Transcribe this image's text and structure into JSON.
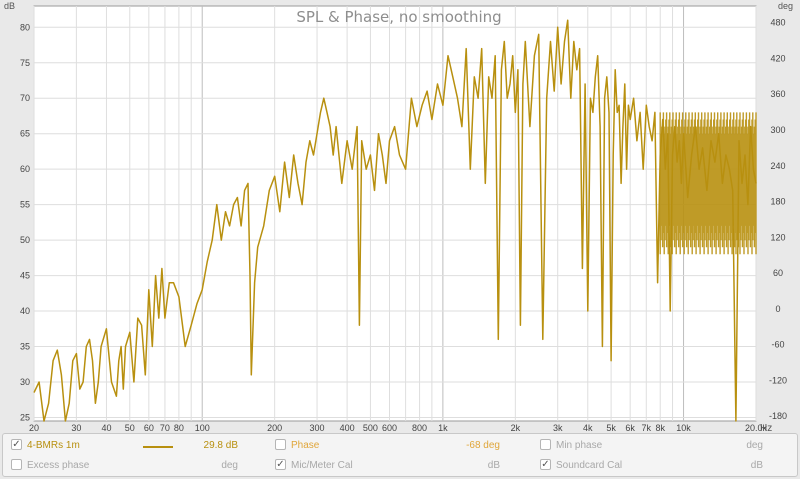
{
  "chart_data": {
    "type": "line",
    "title": "SPL & Phase, no smoothing",
    "left_unit": "dB",
    "right_unit": "deg",
    "x_unit": "Hz",
    "x_scale": "log",
    "x_range": [
      20,
      20000
    ],
    "y_range": [
      24.5,
      83
    ],
    "y2_range": [
      -188,
      508
    ],
    "grid": true,
    "y_ticks": [
      25,
      30,
      35,
      40,
      45,
      50,
      55,
      60,
      65,
      70,
      75,
      80
    ],
    "y2_ticks": [
      -180,
      -120,
      -60,
      0,
      60,
      120,
      180,
      240,
      300,
      360,
      420,
      480
    ],
    "x_ticks": [
      {
        "v": 20,
        "label": "20"
      },
      {
        "v": 30,
        "label": "30"
      },
      {
        "v": 40,
        "label": "40"
      },
      {
        "v": 50,
        "label": "50"
      },
      {
        "v": 60,
        "label": "60"
      },
      {
        "v": 70,
        "label": "70"
      },
      {
        "v": 80,
        "label": "80"
      },
      {
        "v": 100,
        "label": "100"
      },
      {
        "v": 200,
        "label": "200"
      },
      {
        "v": 300,
        "label": "300"
      },
      {
        "v": 400,
        "label": "400"
      },
      {
        "v": 500,
        "label": "500"
      },
      {
        "v": 600,
        "label": "600"
      },
      {
        "v": 800,
        "label": "800"
      },
      {
        "v": 1000,
        "label": "1k"
      },
      {
        "v": 2000,
        "label": "2k"
      },
      {
        "v": 3000,
        "label": "3k"
      },
      {
        "v": 4000,
        "label": "4k"
      },
      {
        "v": 5000,
        "label": "5k"
      },
      {
        "v": 6000,
        "label": "6k"
      },
      {
        "v": 7000,
        "label": "7k"
      },
      {
        "v": 8000,
        "label": "8k"
      },
      {
        "v": 10000,
        "label": "10k"
      },
      {
        "v": 20000,
        "label": "20.0k"
      }
    ],
    "series": [
      {
        "name": "4-BMRs 1m",
        "color": "#b8900f",
        "x": [
          20,
          21,
          22,
          23,
          24,
          25,
          26,
          27,
          28,
          29,
          30,
          31,
          32,
          33,
          34,
          35,
          36,
          37,
          38,
          40,
          42,
          44,
          45,
          46,
          47,
          48,
          50,
          52,
          54,
          56,
          58,
          60,
          62,
          64,
          66,
          68,
          70,
          73,
          76,
          80,
          85,
          90,
          95,
          100,
          105,
          110,
          115,
          120,
          125,
          130,
          135,
          140,
          145,
          150,
          155,
          158,
          160,
          165,
          170,
          180,
          190,
          200,
          210,
          220,
          230,
          240,
          250,
          260,
          270,
          280,
          290,
          300,
          310,
          320,
          330,
          340,
          350,
          360,
          380,
          400,
          420,
          440,
          450,
          460,
          480,
          500,
          520,
          540,
          560,
          580,
          600,
          630,
          660,
          700,
          740,
          780,
          820,
          860,
          900,
          950,
          1000,
          1050,
          1100,
          1150,
          1200,
          1250,
          1300,
          1350,
          1400,
          1450,
          1500,
          1550,
          1600,
          1650,
          1700,
          1750,
          1800,
          1850,
          1900,
          1950,
          2000,
          2050,
          2100,
          2150,
          2200,
          2300,
          2400,
          2500,
          2600,
          2700,
          2800,
          2900,
          3000,
          3100,
          3200,
          3300,
          3400,
          3500,
          3600,
          3700,
          3800,
          3900,
          4000,
          4100,
          4200,
          4300,
          4400,
          4500,
          4600,
          4700,
          4800,
          4900,
          5000,
          5100,
          5200,
          5300,
          5400,
          5500,
          5600,
          5700,
          5800,
          5900,
          6000,
          6200,
          6400,
          6600,
          6800,
          7000,
          7200,
          7400,
          7600,
          7800,
          8000,
          8200,
          8400,
          8600,
          8800,
          9000,
          9200,
          9400,
          9600,
          9800,
          10000,
          10400,
          10800,
          11200,
          11600,
          12000,
          12500,
          13000,
          13500,
          14000,
          14500,
          15000,
          15500,
          16000,
          16500,
          17000,
          17500,
          18000,
          18500,
          19000,
          19500,
          20000
        ],
        "y": [
          28.5,
          30,
          24.5,
          27,
          33,
          34.5,
          31,
          24.5,
          27,
          33,
          34,
          29,
          30,
          35,
          36,
          33,
          27,
          30,
          35,
          37.5,
          30,
          28,
          33,
          35,
          29,
          35,
          37,
          30,
          39,
          38,
          31,
          43,
          35,
          45,
          39,
          46,
          39,
          44,
          44,
          42,
          35,
          38,
          41,
          43,
          47,
          50,
          55,
          50,
          54,
          52,
          55,
          56,
          52,
          57,
          58,
          45,
          31,
          44,
          49,
          52,
          57,
          59,
          54,
          61,
          56,
          62,
          58,
          55,
          61,
          64,
          62,
          65,
          68,
          70,
          68,
          66,
          62,
          66,
          58,
          64,
          60,
          66,
          38,
          64,
          60,
          62,
          57,
          65,
          62,
          58,
          64,
          66,
          62,
          60,
          70,
          66,
          69,
          71,
          67,
          72,
          69,
          76,
          73,
          70,
          66,
          77,
          60,
          73,
          70,
          77,
          58,
          73,
          70,
          76,
          36,
          74,
          78,
          70,
          72,
          76,
          68,
          74,
          38,
          72,
          78,
          66,
          76,
          79,
          36,
          70,
          78,
          71,
          80,
          72,
          78,
          81,
          70,
          78,
          74,
          77,
          46,
          72,
          40,
          70,
          68,
          73,
          76,
          66,
          35,
          70,
          73,
          68,
          33,
          62,
          74,
          68,
          69,
          58,
          66,
          72,
          60,
          69,
          67,
          70,
          64,
          68,
          60,
          69,
          66,
          64,
          68,
          44,
          62,
          67,
          60,
          65,
          40,
          62,
          66,
          61,
          64,
          58,
          65,
          56,
          62,
          66,
          60,
          63,
          57,
          64,
          61,
          65,
          58,
          62,
          60,
          57,
          24.5,
          64,
          58,
          62,
          55,
          66,
          60,
          58
        ],
        "band": {
          "from": 8000,
          "to": 20000,
          "low": 48,
          "high": 68
        }
      }
    ]
  },
  "legend": {
    "row1": [
      {
        "label": "4-BMRs 1m",
        "checked": true,
        "value": "29.8 dB",
        "color": "#b8900f"
      },
      {
        "label": "Phase",
        "checked": false,
        "value": "-68 deg",
        "color": "#e0a63a"
      },
      {
        "label": "Min phase",
        "checked": false,
        "value": "deg"
      }
    ],
    "row2": [
      {
        "label": "Excess phase",
        "checked": false,
        "value": "deg"
      },
      {
        "label": "Mic/Meter Cal",
        "checked": true,
        "value": "dB"
      },
      {
        "label": "Soundcard Cal",
        "checked": true,
        "value": "dB"
      }
    ],
    "check_glyph": "✓"
  }
}
